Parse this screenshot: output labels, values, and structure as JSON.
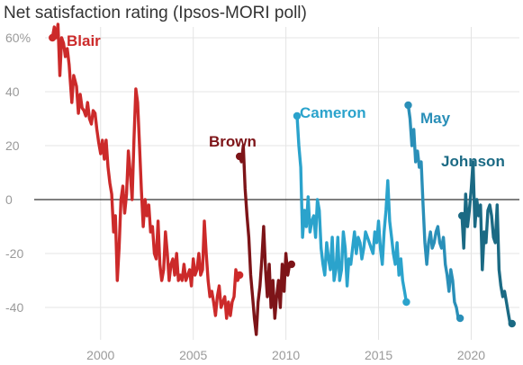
{
  "chart_data": {
    "type": "line",
    "title": "Net satisfaction rating (Ipsos-MORI poll)",
    "xlabel": "",
    "ylabel": "",
    "xlim": [
      1997.0,
      2022.6
    ],
    "ylim": [
      -52,
      64
    ],
    "x_ticks": [
      2000,
      2005,
      2010,
      2015,
      2020
    ],
    "x_tick_labels": [
      "2000",
      "2005",
      "2010",
      "2015",
      "2020"
    ],
    "y_ticks": [
      60,
      40,
      20,
      0,
      -20,
      -40
    ],
    "y_tick_labels": [
      "60%",
      "40",
      "20",
      "0",
      "-20",
      "-40"
    ],
    "grid": true,
    "zero_line": true,
    "series": [
      {
        "name": "Blair",
        "color": "#cc2a2a",
        "x": [
          1997.4,
          1997.5,
          1997.6,
          1997.7,
          1997.8,
          1997.9,
          1998.0,
          1998.1,
          1998.2,
          1998.3,
          1998.45,
          1998.55,
          1998.7,
          1998.8,
          1998.9,
          1999.0,
          1999.1,
          1999.2,
          1999.3,
          1999.4,
          1999.5,
          1999.6,
          1999.7,
          1999.8,
          1999.9,
          2000.0,
          2000.1,
          2000.2,
          2000.3,
          2000.4,
          2000.5,
          2000.6,
          2000.7,
          2000.8,
          2000.9,
          2001.0,
          2001.1,
          2001.2,
          2001.3,
          2001.4,
          2001.5,
          2001.6,
          2001.7,
          2001.8,
          2001.9,
          2002.0,
          2002.1,
          2002.2,
          2002.3,
          2002.4,
          2002.5,
          2002.6,
          2002.7,
          2002.8,
          2002.9,
          2003.0,
          2003.1,
          2003.2,
          2003.3,
          2003.4,
          2003.5,
          2003.6,
          2003.7,
          2003.8,
          2003.9,
          2004.0,
          2004.1,
          2004.2,
          2004.3,
          2004.4,
          2004.5,
          2004.6,
          2004.7,
          2004.8,
          2004.9,
          2005.0,
          2005.1,
          2005.2,
          2005.3,
          2005.4,
          2005.5,
          2005.6,
          2005.7,
          2005.8,
          2005.9,
          2006.0,
          2006.1,
          2006.2,
          2006.3,
          2006.4,
          2006.5,
          2006.6,
          2006.7,
          2006.8,
          2006.9,
          2007.0,
          2007.1,
          2007.2,
          2007.3,
          2007.4,
          2007.5
        ],
        "values": [
          60,
          64,
          60,
          65,
          46,
          60,
          58,
          53,
          56,
          50,
          36,
          46,
          42,
          32,
          39,
          34,
          33,
          31,
          36,
          30,
          28,
          33,
          32,
          26,
          21,
          17,
          22,
          15,
          22,
          12,
          6,
          2,
          -12,
          -6,
          -30,
          -18,
          0,
          5,
          -5,
          2,
          18,
          10,
          0,
          22,
          41,
          36,
          20,
          4,
          -10,
          0,
          -6,
          -2,
          -12,
          -10,
          -20,
          -22,
          -8,
          -24,
          -30,
          -26,
          -12,
          -20,
          -30,
          -24,
          -22,
          -28,
          -20,
          -30,
          -28,
          -30,
          -24,
          -30,
          -28,
          -26,
          -32,
          -22,
          -28,
          -26,
          -20,
          -28,
          -26,
          -8,
          -20,
          -30,
          -36,
          -34,
          -38,
          -43,
          -36,
          -32,
          -40,
          -38,
          -36,
          -44,
          -38,
          -43,
          -38,
          -36,
          -26,
          -30,
          -28
        ]
      },
      {
        "name": "Brown",
        "color": "#7d1418",
        "x": [
          2007.5,
          2007.6,
          2007.7,
          2007.8,
          2007.9,
          2008.0,
          2008.1,
          2008.2,
          2008.3,
          2008.4,
          2008.5,
          2008.6,
          2008.7,
          2008.8,
          2008.9,
          2009.0,
          2009.1,
          2009.2,
          2009.3,
          2009.4,
          2009.5,
          2009.6,
          2009.7,
          2009.8,
          2009.9,
          2010.0,
          2010.1,
          2010.2,
          2010.3
        ],
        "values": [
          16,
          14,
          20,
          4,
          -6,
          -14,
          -28,
          -36,
          -44,
          -50,
          -38,
          -32,
          -22,
          -10,
          -26,
          -36,
          -24,
          -40,
          -30,
          -44,
          -36,
          -30,
          -40,
          -24,
          -34,
          -20,
          -28,
          -24,
          -24
        ]
      },
      {
        "name": "Cameron",
        "color": "#2ba3cc",
        "x": [
          2010.6,
          2010.7,
          2010.8,
          2010.9,
          2011.0,
          2011.1,
          2011.2,
          2011.3,
          2011.4,
          2011.5,
          2011.6,
          2011.7,
          2011.8,
          2011.9,
          2012.0,
          2012.1,
          2012.2,
          2012.3,
          2012.4,
          2012.5,
          2012.6,
          2012.7,
          2012.8,
          2012.9,
          2013.0,
          2013.1,
          2013.2,
          2013.3,
          2013.4,
          2013.5,
          2013.6,
          2013.7,
          2013.8,
          2013.9,
          2014.0,
          2014.1,
          2014.2,
          2014.3,
          2014.4,
          2014.5,
          2014.6,
          2014.7,
          2014.8,
          2014.9,
          2015.0,
          2015.1,
          2015.2,
          2015.3,
          2015.4,
          2015.5,
          2015.6,
          2015.7,
          2015.8,
          2015.9,
          2016.0,
          2016.1,
          2016.2,
          2016.3,
          2016.4,
          2016.5
        ],
        "values": [
          31,
          20,
          12,
          -14,
          -4,
          -10,
          1,
          -12,
          -8,
          -6,
          -14,
          0,
          -4,
          -18,
          -24,
          -28,
          -16,
          -22,
          -26,
          -14,
          -30,
          -26,
          -14,
          -30,
          -26,
          -12,
          -18,
          -32,
          -22,
          -24,
          -18,
          -12,
          -20,
          -14,
          -16,
          -22,
          -18,
          -12,
          -14,
          -16,
          -18,
          -20,
          -12,
          -16,
          -8,
          -18,
          -24,
          -12,
          -4,
          7,
          -8,
          -14,
          -20,
          -24,
          -16,
          -28,
          -22,
          -30,
          -34,
          -38
        ]
      },
      {
        "name": "May",
        "color": "#2a8fb8",
        "x": [
          2016.6,
          2016.7,
          2016.8,
          2016.9,
          2017.0,
          2017.1,
          2017.2,
          2017.3,
          2017.4,
          2017.5,
          2017.6,
          2017.7,
          2017.8,
          2017.9,
          2018.0,
          2018.1,
          2018.2,
          2018.3,
          2018.4,
          2018.5,
          2018.6,
          2018.7,
          2018.8,
          2018.9,
          2019.0,
          2019.1,
          2019.2,
          2019.3,
          2019.4
        ],
        "values": [
          35,
          30,
          20,
          26,
          14,
          18,
          12,
          14,
          -2,
          -16,
          -24,
          -16,
          -12,
          -18,
          -16,
          -12,
          -10,
          -16,
          -18,
          -14,
          -24,
          -28,
          -34,
          -26,
          -30,
          -38,
          -40,
          -44,
          -44
        ]
      },
      {
        "name": "Johnson",
        "color": "#1b6a84",
        "x": [
          2019.5,
          2019.6,
          2019.7,
          2019.8,
          2019.9,
          2020.0,
          2020.1,
          2020.2,
          2020.3,
          2020.4,
          2020.5,
          2020.6,
          2020.7,
          2020.8,
          2020.9,
          2021.0,
          2021.1,
          2021.2,
          2021.3,
          2021.4,
          2021.5,
          2021.6,
          2021.7,
          2021.8,
          2021.9,
          2022.0,
          2022.1,
          2022.2
        ],
        "values": [
          -6,
          -18,
          2,
          -10,
          -4,
          4,
          14,
          -10,
          0,
          -6,
          -2,
          -26,
          -12,
          -16,
          -4,
          -2,
          -6,
          -14,
          -16,
          -2,
          -26,
          -32,
          -36,
          -34,
          -38,
          -42,
          -46,
          -46
        ]
      }
    ],
    "labels": [
      {
        "text": "Blair",
        "series": "Blair"
      },
      {
        "text": "Brown",
        "series": "Brown"
      },
      {
        "text": "Cameron",
        "series": "Cameron"
      },
      {
        "text": "May",
        "series": "May"
      },
      {
        "text": "Johnson",
        "series": "Johnson"
      }
    ]
  }
}
